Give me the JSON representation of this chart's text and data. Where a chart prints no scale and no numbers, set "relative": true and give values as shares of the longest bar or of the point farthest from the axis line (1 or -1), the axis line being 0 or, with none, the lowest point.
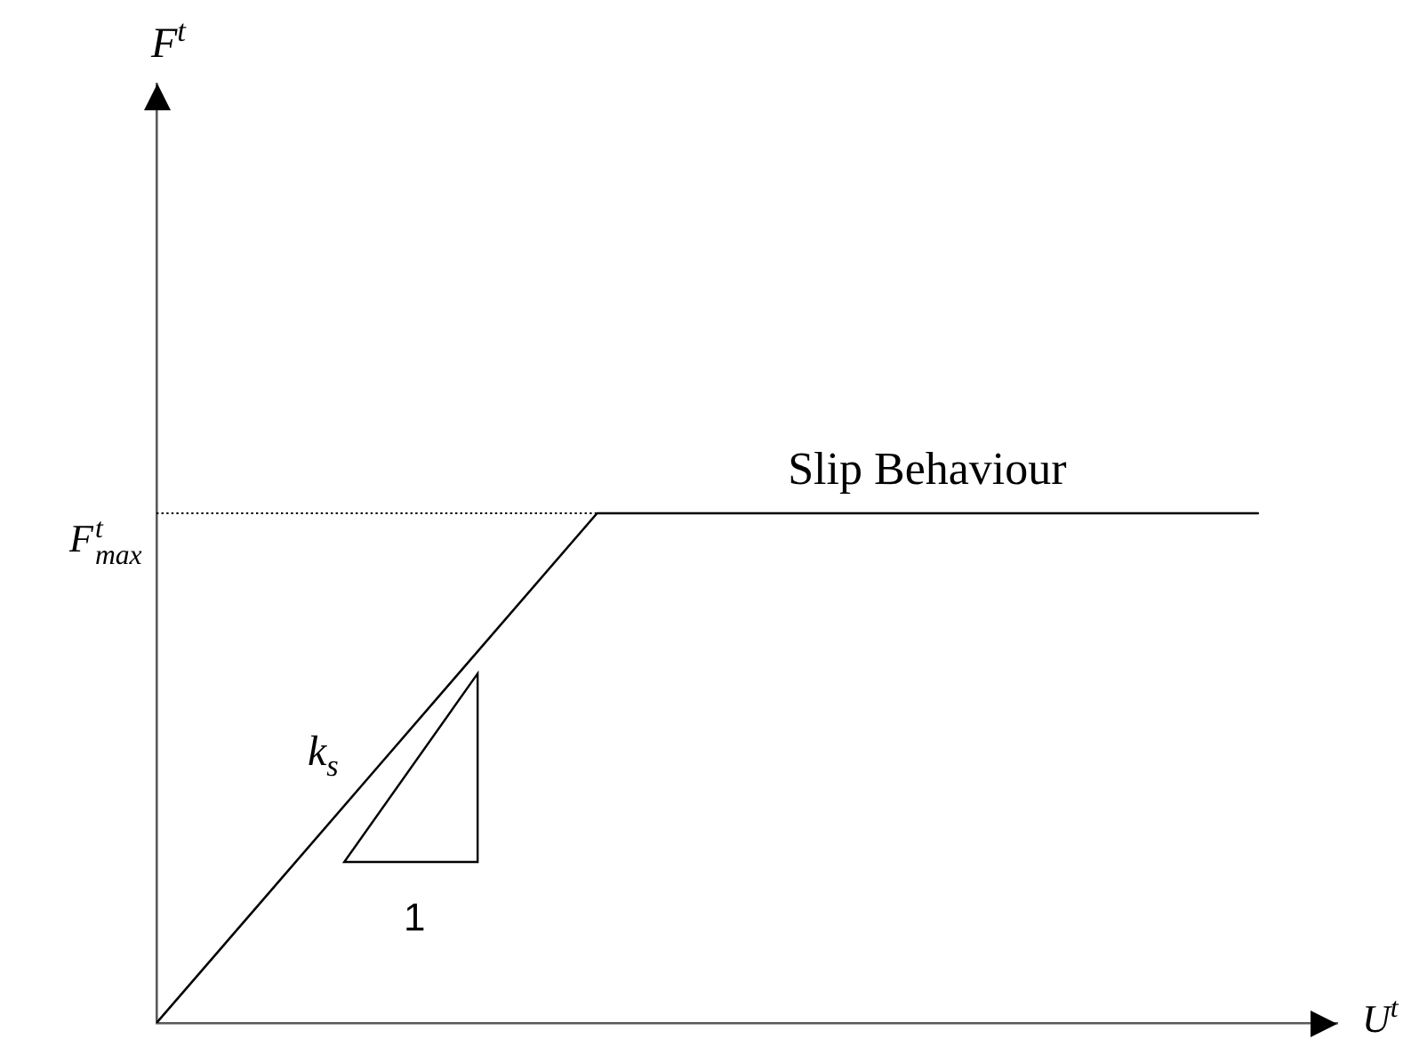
{
  "chart_data": {
    "type": "line",
    "xlabel": "U$^{t}$",
    "relative": true,
    "categories": [
      null,
      null,
      null,
      null,
      null,
      null
    ],
    "values": [
      0,
      0.5,
      1,
      1,
      1,
      1
    ],
    "color": "#000000",
    "ref_lines": [
      {
        "axis": "y",
        "value": 1,
        "label": "F$^{t}$$_{max}$",
        "color": "#000000",
        "line_style": "dotted"
      }
    ],
    "annotations": [
      "F$^{t}$",
      {
        "text": "Slip Behaviour",
        "y": 1
      },
      "k$_{s}$",
      "1"
    ]
  }
}
